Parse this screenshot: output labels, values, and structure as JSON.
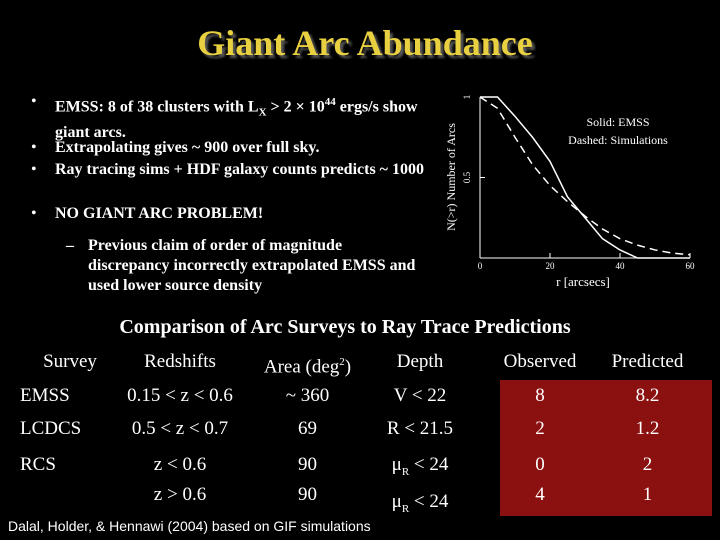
{
  "header": {
    "title": "Giant Arc Abundance"
  },
  "bullets": [
    [
      "EMSS: 8 of 38 clusters with L",
      "X",
      " > 2 × 10",
      "44",
      " ergs/s show giant arcs."
    ],
    "Extrapolating gives ~ 900 over full sky.",
    "Ray tracing sims + HDF galaxy counts predicts ~ 1000",
    "NO GIANT ARC PROBLEM!"
  ],
  "sub_bullets": [
    "Previous claim of order of magnitude discrepancy incorrectly extrapolated EMSS and used lower source density"
  ],
  "chart_data": {
    "type": "line",
    "x": [
      0,
      5,
      10,
      15,
      20,
      25,
      30,
      35,
      40,
      45,
      50,
      55,
      60
    ],
    "series": [
      {
        "name": "Solid: EMSS",
        "color": "#ffffff",
        "dashed": false,
        "values": [
          1,
          1,
          0.88,
          0.75,
          0.6,
          0.38,
          0.25,
          0.12,
          0.05,
          0,
          0,
          0,
          0
        ]
      },
      {
        "name": "Dashed: Simulations",
        "color": "#ffffff",
        "dashed": true,
        "values": [
          1,
          0.93,
          0.75,
          0.58,
          0.45,
          0.35,
          0.26,
          0.18,
          0.12,
          0.08,
          0.05,
          0.03,
          0.02
        ]
      }
    ],
    "xlim": [
      0,
      60
    ],
    "ylim": [
      0,
      1
    ],
    "xticks": [
      0,
      20,
      40,
      60
    ],
    "yticks": [
      0.5,
      1
    ],
    "xlabel": "r [arcsecs]",
    "ylabel": "N(>r)  Number of Arcs"
  },
  "table": {
    "title": "Comparison of Arc Surveys to Ray Trace Predictions",
    "header": [
      "Survey",
      "Redshifts",
      [
        [
          "Area (deg",
          "2",
          ")"
        ]
      ],
      "Depth",
      "Observed",
      "Predicted"
    ],
    "rows": [
      [
        "EMSS",
        "0.15 < z < 0.6",
        "~ 360",
        "V < 22",
        "8",
        "8.2"
      ],
      [
        "LCDCS",
        "0.5 < z < 0.7",
        "69",
        "R < 21.5",
        "2",
        "1.2"
      ],
      [
        "RCS",
        [
          "z < 0.6",
          "z > 0.6"
        ],
        [
          "90",
          "90"
        ],
        [
          [
            "μ",
            "R",
            " < 24"
          ],
          [
            "μ",
            "R",
            " < 24"
          ]
        ],
        [
          "0",
          "4"
        ],
        [
          "2",
          "1"
        ]
      ]
    ]
  },
  "footer": "Dalal, Holder, & Hennawi (2004)  based on GIF simulations"
}
